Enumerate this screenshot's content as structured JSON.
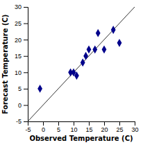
{
  "chart_data": {
    "type": "scatter",
    "xlabel": "Observed Temperature (C)",
    "ylabel": "Forecast Temperature (C)",
    "x": [
      -1,
      9,
      10,
      11,
      13,
      14,
      15,
      17,
      18,
      20,
      23,
      25
    ],
    "values": [
      5,
      10,
      10,
      9,
      13,
      15,
      17,
      17,
      22,
      17,
      23,
      19
    ],
    "color": "#00008B",
    "marker": "diamond",
    "xlim": [
      -5,
      30
    ],
    "ylim": [
      -5,
      30
    ],
    "xticks": [
      -5,
      0,
      5,
      10,
      15,
      20,
      25,
      30
    ],
    "yticks": [
      -5,
      0,
      5,
      10,
      15,
      20,
      25,
      30
    ],
    "grid": false
  }
}
